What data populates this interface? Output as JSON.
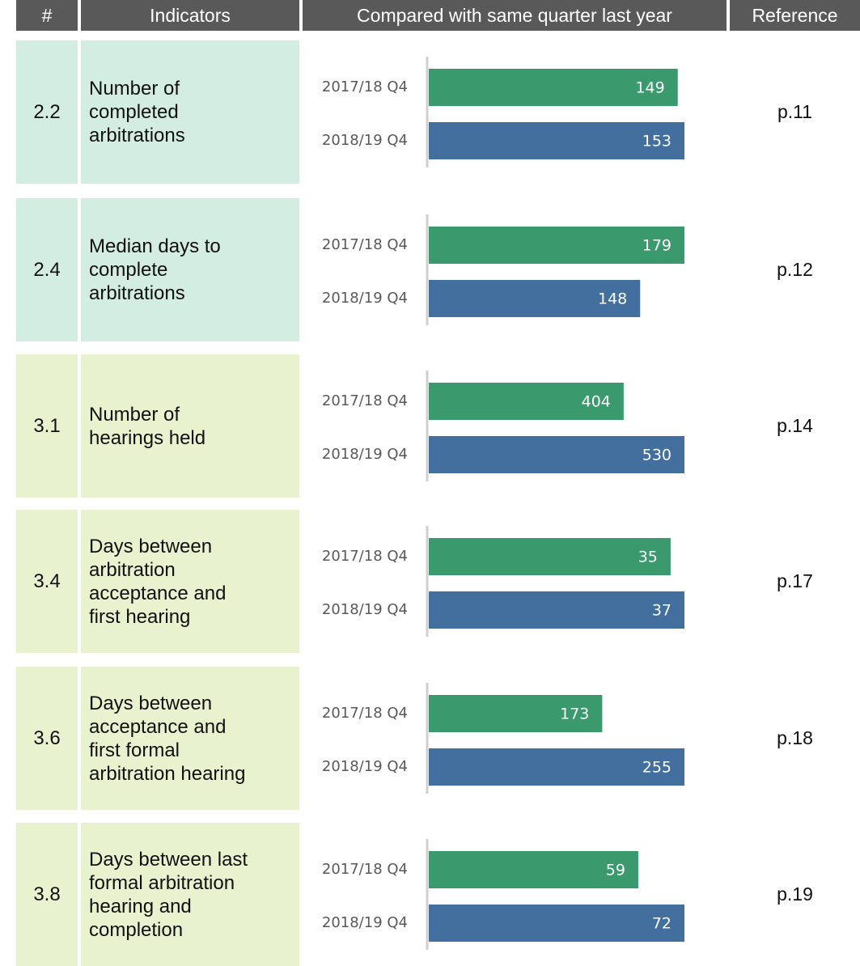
{
  "header": [
    "#",
    "Indicators",
    "Compared with same quarter last year",
    "Reference"
  ],
  "rows": [
    {
      "id": "2.2",
      "indicator": [
        "Number of",
        "completed",
        "arbitrations"
      ],
      "reference": "p.11",
      "background": "#d3ede3",
      "chart": {
        "type": "bar",
        "categories": [
          "2017/18 Q4",
          "2018/19 Q4"
        ],
        "values": [
          149,
          153
        ],
        "colors": [
          "#3a9a6e",
          "#426f9e"
        ]
      }
    },
    {
      "id": "2.4",
      "indicator": [
        "Median days to",
        "complete",
        "arbitrations"
      ],
      "reference": "p.12",
      "background": "#d3ede3",
      "chart": {
        "type": "bar",
        "categories": [
          "2017/18 Q4",
          "2018/19 Q4"
        ],
        "values": [
          179,
          148
        ],
        "colors": [
          "#3a9a6e",
          "#426f9e"
        ]
      }
    },
    {
      "id": "3.1",
      "indicator": [
        "Number of",
        "hearings held"
      ],
      "reference": "p.14",
      "background": "#e9f2cf",
      "chart": {
        "type": "bar",
        "categories": [
          "2017/18 Q4",
          "2018/19 Q4"
        ],
        "values": [
          404,
          530
        ],
        "colors": [
          "#3a9a6e",
          "#426f9e"
        ]
      }
    },
    {
      "id": "3.4",
      "indicator": [
        "Days between",
        "arbitration",
        "acceptance and",
        "first hearing"
      ],
      "reference": "p.17",
      "background": "#e9f2cf",
      "chart": {
        "type": "bar",
        "categories": [
          "2017/18 Q4",
          "2018/19 Q4"
        ],
        "values": [
          35,
          37
        ],
        "colors": [
          "#3a9a6e",
          "#426f9e"
        ]
      }
    },
    {
      "id": "3.6",
      "indicator": [
        "Days between",
        "acceptance and",
        "first formal",
        "arbitration hearing"
      ],
      "reference": "p.18",
      "background": "#e9f2cf",
      "chart": {
        "type": "bar",
        "categories": [
          "2017/18 Q4",
          "2018/19 Q4"
        ],
        "values": [
          173,
          255
        ],
        "colors": [
          "#3a9a6e",
          "#426f9e"
        ]
      }
    },
    {
      "id": "3.8",
      "indicator": [
        "Days between last",
        "formal arbitration",
        "hearing and",
        "completion"
      ],
      "reference": "p.19",
      "background": "#e9f2cf",
      "chart": {
        "type": "bar",
        "categories": [
          "2017/18 Q4",
          "2018/19 Q4"
        ],
        "values": [
          59,
          72
        ],
        "colors": [
          "#3a9a6e",
          "#426f9e"
        ]
      }
    }
  ]
}
